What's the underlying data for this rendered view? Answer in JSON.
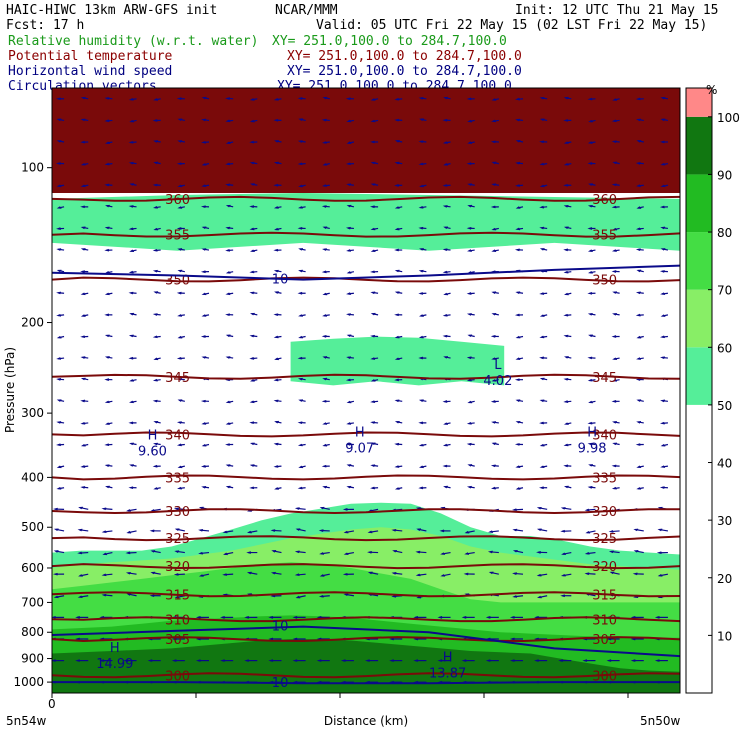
{
  "header": {
    "title": "HAIC-HIWC 13km ARW-GFS init",
    "center": "NCAR/MMM",
    "init": "Init: 12 UTC Thu 21 May 15",
    "fcst": "Fcst:   17 h",
    "valid": "Valid: 05 UTC Fri 22 May 15 (02 LST Fri 22 May 15)"
  },
  "fields": [
    {
      "name": "Relative humidity (w.r.t. water)",
      "xy": "XY= 251.0,100.0 to 284.7,100.0",
      "color": "#1a9a1a"
    },
    {
      "name": "Potential temperature",
      "xy": "XY= 251.0,100.0 to 284.7,100.0",
      "color": "#8b0000"
    },
    {
      "name": "Horizontal wind speed",
      "xy": "XY= 251.0,100.0 to 284.7,100.0",
      "color": "#000080"
    },
    {
      "name": "Circulation vectors",
      "xy": "XY= 251.0,100.0 to 284.7,100.0",
      "color": "#000080"
    }
  ],
  "chart_data": {
    "type": "heatmap",
    "xlabel": "Distance (km)",
    "ylabel": "Pressure (hPa)",
    "x_start_label": "0",
    "x_left_label": "5n54w",
    "x_right_label": "5n50w",
    "ylim": [
      1050,
      70
    ],
    "yticks": [
      100,
      200,
      300,
      400,
      500,
      600,
      700,
      800,
      900,
      1000
    ],
    "colorbar": {
      "unit": "%",
      "levels": [
        0,
        10,
        20,
        30,
        40,
        50,
        60,
        70,
        80,
        90,
        100
      ],
      "labels": [
        "10",
        "20",
        "30",
        "40",
        "50",
        "60",
        "70",
        "80",
        "90",
        "100"
      ],
      "colors": [
        "#ffffff",
        "#ffffff",
        "#ffffff",
        "#ffffff",
        "#ffffff",
        "#55ee99",
        "#88ee66",
        "#44dd44",
        "#22bb22",
        "#117711",
        "#ff8888"
      ]
    },
    "rh_regions": [
      {
        "level": 50,
        "top_hPa": [
          560,
          555,
          555,
          555,
          545,
          525,
          505,
          485,
          470,
          460,
          450,
          448,
          450,
          470,
          500,
          520,
          520,
          530,
          545,
          555,
          560,
          565
        ],
        "bottom_hPa": 1050
      },
      {
        "level": 60,
        "top_hPa": [
          600,
          590,
          585,
          580,
          575,
          565,
          555,
          540,
          525,
          515,
          505,
          500,
          505,
          520,
          545,
          560,
          570,
          580,
          590,
          595,
          600,
          605
        ],
        "bottom_hPa": 1050
      },
      {
        "level": 70,
        "top_hPa": [
          660,
          650,
          640,
          630,
          620,
          610,
          600,
          590,
          585,
          590,
          600,
          615,
          630,
          660,
          690,
          700,
          700,
          700,
          700,
          700,
          700,
          700
        ],
        "bottom_hPa": 1050
      },
      {
        "level": 80,
        "top_hPa": [
          790,
          785,
          780,
          770,
          760,
          755,
          750,
          745,
          742,
          745,
          750,
          760,
          770,
          780,
          790,
          800,
          805,
          810,
          815,
          820,
          820,
          820
        ],
        "bottom_hPa": 1050
      },
      {
        "level": 90,
        "top_hPa": [
          880,
          875,
          870,
          865,
          860,
          850,
          840,
          830,
          825,
          825,
          830,
          840,
          850,
          860,
          870,
          875,
          880,
          900,
          920,
          940,
          950,
          955
        ],
        "bottom_hPa": 1050
      },
      {
        "level": 50,
        "top_hPa": [
          218,
          215,
          213,
          214,
          218,
          222
        ],
        "bottom_hPa": 260,
        "x_range": [
          0.38,
          0.72
        ]
      },
      {
        "level": 50,
        "top_hPa": [
          115,
          113,
          112,
          113,
          114,
          115
        ],
        "bottom_hPa": 140,
        "x_range": [
          0.0,
          1.0
        ]
      }
    ],
    "theta_contours": [
      {
        "value": 300,
        "p_hPa": 970
      },
      {
        "value": 305,
        "p_hPa": 825
      },
      {
        "value": 310,
        "p_hPa": 755
      },
      {
        "value": 315,
        "p_hPa": 675
      },
      {
        "value": 320,
        "p_hPa": 595
      },
      {
        "value": 325,
        "p_hPa": 525
      },
      {
        "value": 330,
        "p_hPa": 465
      },
      {
        "value": 335,
        "p_hPa": 400
      },
      {
        "value": 340,
        "p_hPa": 330
      },
      {
        "value": 345,
        "p_hPa": 255
      },
      {
        "value": 350,
        "p_hPa": 165
      },
      {
        "value": 355,
        "p_hPa": 135
      },
      {
        "value": 360,
        "p_hPa": 115
      }
    ],
    "wind_contours": [
      {
        "value": 10,
        "p_hPa": [
          1000,
          1000,
          1005,
          1005,
          1000,
          1000
        ]
      },
      {
        "value": 10,
        "p_hPa": [
          810,
          795,
          780,
          800,
          860,
          890
        ]
      },
      {
        "value": 10,
        "p_hPa": [
          160,
          162,
          165,
          162,
          158,
          155
        ]
      }
    ],
    "extrema": [
      {
        "kind": "H",
        "value": "9.60",
        "x": 0.16,
        "p_hPa": 350
      },
      {
        "kind": "H",
        "value": "9.07",
        "x": 0.49,
        "p_hPa": 345
      },
      {
        "kind": "H",
        "value": "9.98",
        "x": 0.86,
        "p_hPa": 345
      },
      {
        "kind": "L",
        "value": "4.02",
        "x": 0.71,
        "p_hPa": 255
      },
      {
        "kind": "H",
        "value": "14.99",
        "x": 0.1,
        "p_hPa": 905
      },
      {
        "kind": "H",
        "value": "13.87",
        "x": 0.63,
        "p_hPa": 945
      }
    ],
    "grid": false
  }
}
